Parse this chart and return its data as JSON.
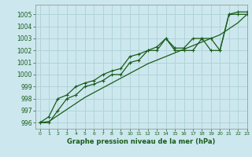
{
  "title": "Graphe pression niveau de la mer (hPa)",
  "background_color": "#cce8ee",
  "grid_color": "#b0d4d8",
  "line_color": "#1a5c1a",
  "xlim": [
    -0.5,
    23
  ],
  "ylim": [
    995.5,
    1005.8
  ],
  "yticks": [
    996,
    997,
    998,
    999,
    1000,
    1001,
    1002,
    1003,
    1004,
    1005
  ],
  "xticks": [
    0,
    1,
    2,
    3,
    4,
    5,
    6,
    7,
    8,
    9,
    10,
    11,
    12,
    13,
    14,
    15,
    16,
    17,
    18,
    19,
    20,
    21,
    22,
    23
  ],
  "series_straight": [
    996.0,
    996.1,
    996.6,
    997.1,
    997.6,
    998.1,
    998.5,
    998.9,
    999.3,
    999.7,
    1000.1,
    1000.5,
    1000.9,
    1001.2,
    1001.5,
    1001.8,
    1002.1,
    1002.4,
    1002.7,
    1003.0,
    1003.3,
    1003.8,
    1004.3,
    1005.0
  ],
  "series_a": [
    996.0,
    996.0,
    997.0,
    998.0,
    998.3,
    999.0,
    999.2,
    999.5,
    1000.0,
    1000.0,
    1001.0,
    1001.2,
    1002.0,
    1002.0,
    1003.0,
    1002.0,
    1002.0,
    1002.0,
    1003.0,
    1002.0,
    1002.0,
    1005.0,
    1005.0,
    1005.0
  ],
  "series_b": [
    996.0,
    996.5,
    998.0,
    998.3,
    999.0,
    999.3,
    999.5,
    1000.0,
    1000.3,
    1000.5,
    1001.5,
    1001.7,
    1002.0,
    1002.3,
    1003.0,
    1002.2,
    1002.2,
    1003.0,
    1003.0,
    1003.0,
    1002.0,
    1005.0,
    1005.2,
    1005.2
  ]
}
